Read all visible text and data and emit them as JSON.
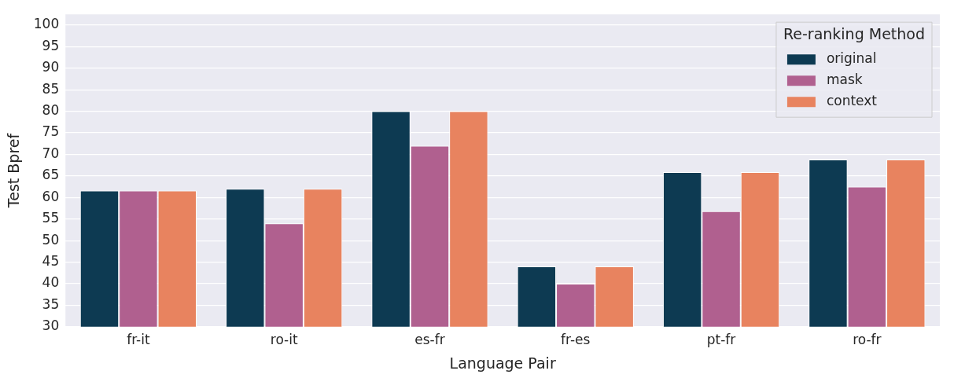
{
  "chart_data": {
    "type": "bar",
    "xlabel": "Language Pair",
    "ylabel": "Test Bpref",
    "legend_title": "Re-ranking Method",
    "legend": "top right",
    "grid": "y",
    "categories": [
      "fr-it",
      "ro-it",
      "es-fr",
      "fr-es",
      "pt-fr",
      "ro-fr"
    ],
    "series": [
      {
        "name": "original",
        "color": "#0d3a52",
        "values": [
          61.6,
          62.0,
          80.0,
          44.0,
          65.9,
          68.8
        ]
      },
      {
        "name": "mask",
        "color": "#b0608f",
        "values": [
          61.6,
          54.0,
          72.0,
          40.0,
          56.8,
          62.5
        ]
      },
      {
        "name": "context",
        "color": "#e8835f",
        "values": [
          61.6,
          62.0,
          80.0,
          44.0,
          65.9,
          68.8
        ]
      }
    ],
    "ylim": [
      30,
      102.5
    ],
    "yticks": [
      30,
      35,
      40,
      45,
      50,
      55,
      60,
      65,
      70,
      75,
      80,
      85,
      90,
      95,
      100
    ]
  }
}
